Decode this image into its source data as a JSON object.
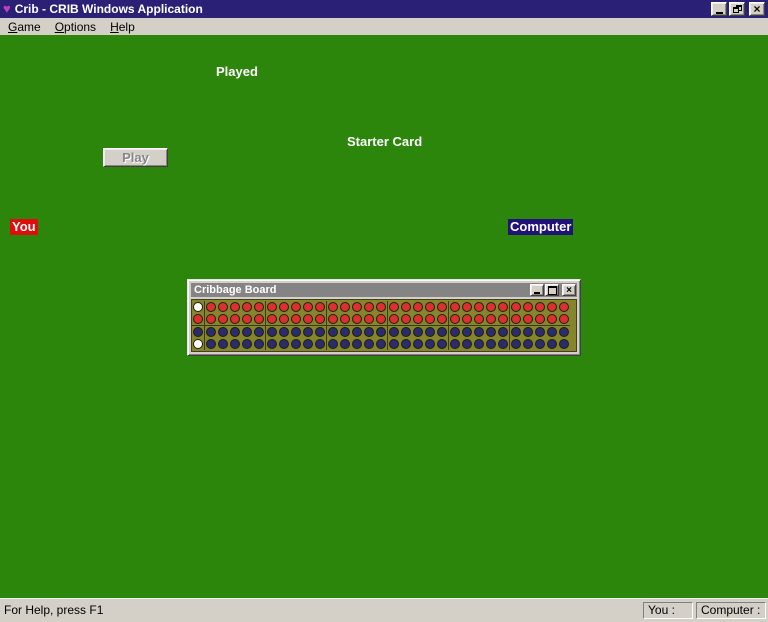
{
  "window": {
    "title": "Crib - CRIB Windows Application"
  },
  "icons": {
    "app_icon": "♥",
    "minimize": "_",
    "restore": "❐",
    "maximize": "□",
    "close": "×"
  },
  "menu": {
    "items": [
      {
        "label": "Game",
        "first": "G",
        "rest": "ame"
      },
      {
        "label": "Options",
        "first": "O",
        "rest": "ptions"
      },
      {
        "label": "Help",
        "first": "H",
        "rest": "elp"
      }
    ]
  },
  "table": {
    "played_label": "Played",
    "starter_card_label": "Starter Card",
    "play_button_label": "Play",
    "you_label": "You",
    "computer_label": "Computer"
  },
  "board_window": {
    "title": "Cribbage Board",
    "board": {
      "start_column": [
        "white",
        "red",
        "navy",
        "white"
      ],
      "row_colors": [
        "red",
        "red",
        "navy",
        "navy"
      ],
      "groups": 6,
      "holes_per_group": 5
    }
  },
  "status_bar": {
    "help_text": "For Help, press F1",
    "you_panel_label": "You :",
    "computer_panel_label": "Computer :"
  },
  "colors": {
    "titlebar": "#2a2177",
    "chrome_gray": "#d4d0c8",
    "desktop_green": "#2c860b",
    "board_olive": "#85852e",
    "peg_red": "#dd2f2f",
    "peg_navy": "#2b2b6e",
    "peg_white": "#ffffff",
    "you_bg": "#e00d0d",
    "computer_bg": "#21127a",
    "heart_pink": "#c03ec0"
  }
}
